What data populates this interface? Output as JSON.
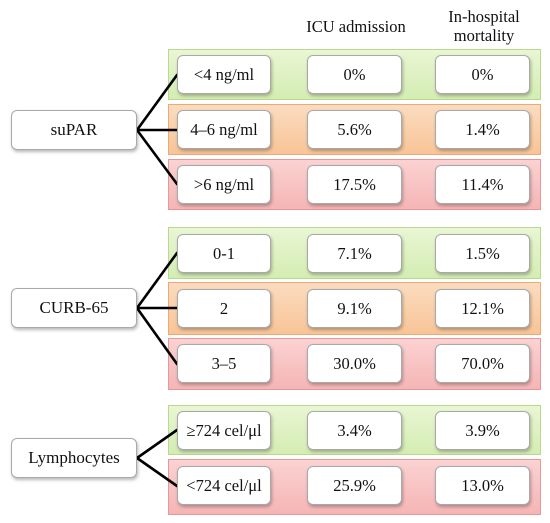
{
  "headers": {
    "icu": "ICU admission",
    "mortality_line1": "In-hospital",
    "mortality_line2": "mortality"
  },
  "groups": [
    {
      "label": "suPAR",
      "rows": [
        {
          "category": "<4 ng/ml",
          "icu": "0%",
          "mortality": "0%",
          "band": "green"
        },
        {
          "category": "4–6 ng/ml",
          "icu": "5.6%",
          "mortality": "1.4%",
          "band": "orange"
        },
        {
          "category": ">6 ng/ml",
          "icu": "17.5%",
          "mortality": "11.4%",
          "band": "red"
        }
      ]
    },
    {
      "label": "CURB-65",
      "rows": [
        {
          "category": "0-1",
          "icu": "7.1%",
          "mortality": "1.5%",
          "band": "green"
        },
        {
          "category": "2",
          "icu": "9.1%",
          "mortality": "12.1%",
          "band": "orange"
        },
        {
          "category": "3–5",
          "icu": "30.0%",
          "mortality": "70.0%",
          "band": "red"
        }
      ]
    },
    {
      "label": "Lymphocytes",
      "rows": [
        {
          "category": "≥724 cel/μl",
          "icu": "3.4%",
          "mortality": "3.9%",
          "band": "green"
        },
        {
          "category": "<724 cel/μl",
          "icu": "25.9%",
          "mortality": "13.0%",
          "band": "red"
        }
      ]
    }
  ]
}
